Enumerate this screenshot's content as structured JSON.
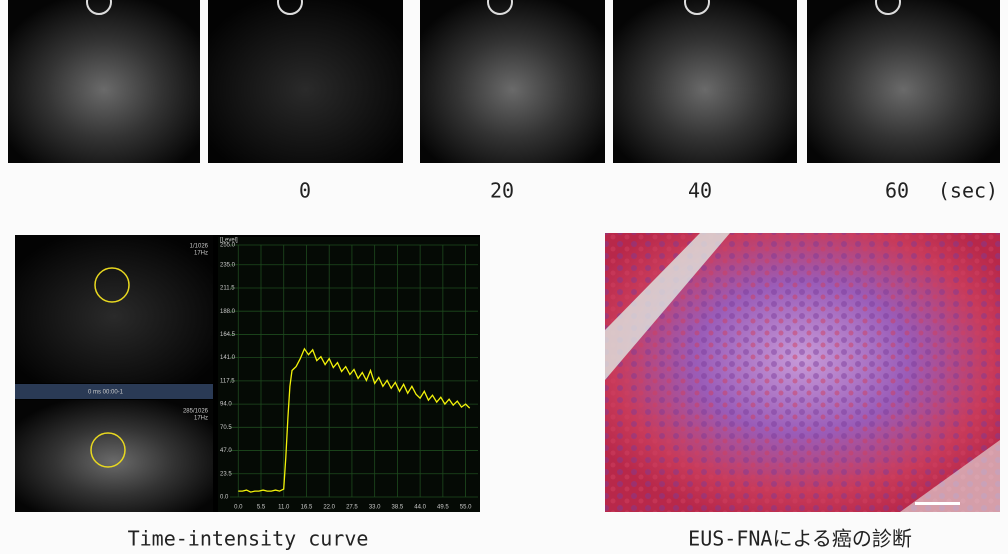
{
  "time_labels": [
    "0",
    "20",
    "40",
    "60"
  ],
  "time_unit": "(sec)",
  "tic_panel": {
    "top_frame": [
      "1/1026",
      "17Hz"
    ],
    "bottom_frame": [
      "285/1026",
      "17Hz"
    ],
    "timebar": "0 ms   00:00-1"
  },
  "chart_data": {
    "type": "line",
    "ylabel": "[Level]",
    "color": "#f2f20a",
    "x": [
      0,
      1,
      2,
      3,
      4,
      5,
      6,
      7,
      8,
      9,
      10,
      11,
      11.5,
      12,
      12.5,
      13,
      14,
      15,
      16,
      17,
      18,
      19,
      20,
      21,
      22,
      23,
      24,
      25,
      26,
      27,
      28,
      29,
      30,
      31,
      32,
      33,
      34,
      35,
      36,
      37,
      38,
      39,
      40,
      41,
      42,
      43,
      44,
      45,
      46,
      47,
      48,
      49,
      50,
      51,
      52,
      53,
      54,
      55,
      56
    ],
    "values": [
      6,
      6,
      7,
      5,
      6,
      6,
      7,
      6,
      6,
      7,
      6,
      8,
      40,
      80,
      112,
      128,
      132,
      140,
      150,
      144,
      149,
      138,
      142,
      134,
      140,
      131,
      136,
      127,
      132,
      124,
      129,
      120,
      126,
      118,
      128,
      115,
      121,
      112,
      118,
      110,
      116,
      107,
      114,
      105,
      112,
      104,
      100,
      107,
      98,
      103,
      96,
      101,
      94,
      99,
      93,
      97,
      91,
      94,
      90
    ],
    "xlim": [
      -2,
      58
    ],
    "ylim": [
      0,
      255
    ],
    "xticks": [
      {
        "value": 0,
        "label": "0.0"
      },
      5.5,
      {
        "value": 11,
        "label": "11.0"
      },
      16.5,
      {
        "value": 22,
        "label": "22.0"
      },
      27.5,
      {
        "value": 33,
        "label": "33.0"
      },
      38.5,
      {
        "value": 44,
        "label": "44.0"
      },
      49.5,
      {
        "value": 55,
        "label": "55.0"
      }
    ],
    "yticks": [
      {
        "value": 0,
        "label": "0.0"
      },
      23.5,
      {
        "value": 47,
        "label": "47.0"
      },
      70.5,
      {
        "value": 94,
        "label": "94.0"
      },
      117.5,
      {
        "value": 141,
        "label": "141.0"
      },
      164.5,
      {
        "value": 188,
        "label": "188.0"
      },
      211.5,
      {
        "value": 235,
        "label": "235.0"
      },
      {
        "value": 255,
        "label": "255.0"
      }
    ],
    "grid": true
  },
  "captions": [
    "Time-intensity curve",
    "EUS-FNAによる癌の診断"
  ]
}
